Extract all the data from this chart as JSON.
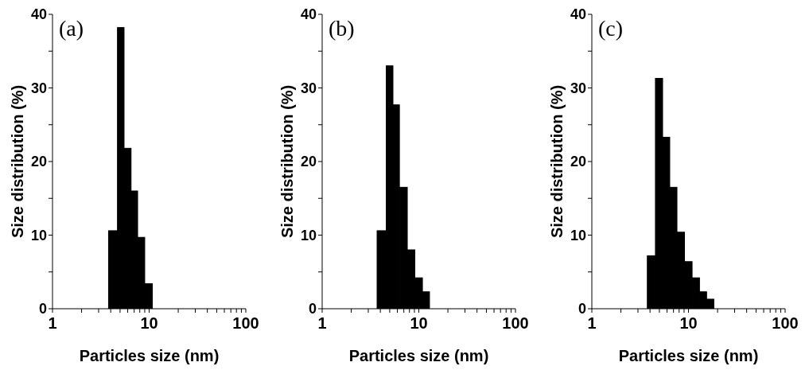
{
  "chart_data": [
    {
      "type": "histogram",
      "title": "(a)",
      "xlabel": "Particles size (nm)",
      "ylabel": "Size distribution (%)",
      "color": "#000000",
      "log": "x",
      "bins": [
        3.8,
        4.7,
        5.5,
        6.5,
        7.6,
        9.0,
        10.8
      ],
      "values": [
        10.6,
        38.2,
        21.8,
        16,
        9.7,
        3.4
      ],
      "xlim": [
        1,
        100
      ],
      "ylim": [
        0,
        40
      ],
      "xticks": [
        1,
        {
          "value": 2,
          "label": null
        },
        {
          "value": 3,
          "label": null
        },
        {
          "value": 4,
          "label": null
        },
        {
          "value": 5,
          "label": null
        },
        {
          "value": 6,
          "label": null
        },
        {
          "value": 7,
          "label": null
        },
        {
          "value": 8,
          "label": null
        },
        {
          "value": 9,
          "label": null
        },
        10,
        {
          "value": 20,
          "label": null
        },
        {
          "value": 30,
          "label": null
        },
        {
          "value": 40,
          "label": null
        },
        {
          "value": 50,
          "label": null
        },
        {
          "value": 60,
          "label": null
        },
        {
          "value": 70,
          "label": null
        },
        {
          "value": 80,
          "label": null
        },
        {
          "value": 90,
          "label": null
        },
        100
      ],
      "yticks": [
        0,
        {
          "value": 5,
          "label": null
        },
        10,
        {
          "value": 15,
          "label": null
        },
        20,
        {
          "value": 25,
          "label": null
        },
        30,
        {
          "value": 35,
          "label": null
        },
        40
      ]
    },
    {
      "type": "histogram",
      "title": "(b)",
      "xlabel": "Particles size (nm)",
      "ylabel": "Size distribution (%)",
      "color": "#000000",
      "log": "x",
      "bins": [
        3.7,
        4.6,
        5.4,
        6.3,
        7.6,
        9.1,
        10.9,
        12.9
      ],
      "values": [
        10.6,
        33,
        27.7,
        16.5,
        8,
        4.2,
        2.3
      ],
      "xlim": [
        1,
        100
      ],
      "ylim": [
        0,
        40
      ],
      "xticks": [
        1,
        {
          "value": 2,
          "label": null
        },
        {
          "value": 3,
          "label": null
        },
        {
          "value": 4,
          "label": null
        },
        {
          "value": 5,
          "label": null
        },
        {
          "value": 6,
          "label": null
        },
        {
          "value": 7,
          "label": null
        },
        {
          "value": 8,
          "label": null
        },
        {
          "value": 9,
          "label": null
        },
        10,
        {
          "value": 20,
          "label": null
        },
        {
          "value": 30,
          "label": null
        },
        {
          "value": 40,
          "label": null
        },
        {
          "value": 50,
          "label": null
        },
        {
          "value": 60,
          "label": null
        },
        {
          "value": 70,
          "label": null
        },
        {
          "value": 80,
          "label": null
        },
        {
          "value": 90,
          "label": null
        },
        100
      ],
      "yticks": [
        0,
        {
          "value": 5,
          "label": null
        },
        10,
        {
          "value": 15,
          "label": null
        },
        20,
        {
          "value": 25,
          "label": null
        },
        30,
        {
          "value": 35,
          "label": null
        },
        40
      ]
    },
    {
      "type": "histogram",
      "title": "(c)",
      "xlabel": "Particles size (nm)",
      "ylabel": "Size distribution (%)",
      "color": "#000000",
      "log": "x",
      "bins": [
        3.75,
        4.55,
        5.4,
        6.4,
        7.6,
        9.1,
        10.9,
        13,
        15.4,
        18.3
      ],
      "values": [
        7.2,
        31.3,
        23.3,
        16.5,
        10.4,
        6.4,
        4.2,
        2.3,
        1.3
      ],
      "xlim": [
        1,
        100
      ],
      "ylim": [
        0,
        40
      ],
      "xticks": [
        1,
        {
          "value": 2,
          "label": null
        },
        {
          "value": 3,
          "label": null
        },
        {
          "value": 4,
          "label": null
        },
        {
          "value": 5,
          "label": null
        },
        {
          "value": 6,
          "label": null
        },
        {
          "value": 7,
          "label": null
        },
        {
          "value": 8,
          "label": null
        },
        {
          "value": 9,
          "label": null
        },
        10,
        {
          "value": 20,
          "label": null
        },
        {
          "value": 30,
          "label": null
        },
        {
          "value": 40,
          "label": null
        },
        {
          "value": 50,
          "label": null
        },
        {
          "value": 60,
          "label": null
        },
        {
          "value": 70,
          "label": null
        },
        {
          "value": 80,
          "label": null
        },
        {
          "value": 90,
          "label": null
        },
        100
      ],
      "yticks": [
        0,
        {
          "value": 5,
          "label": null
        },
        10,
        {
          "value": 15,
          "label": null
        },
        20,
        {
          "value": 25,
          "label": null
        },
        30,
        {
          "value": 35,
          "label": null
        },
        40
      ]
    }
  ]
}
